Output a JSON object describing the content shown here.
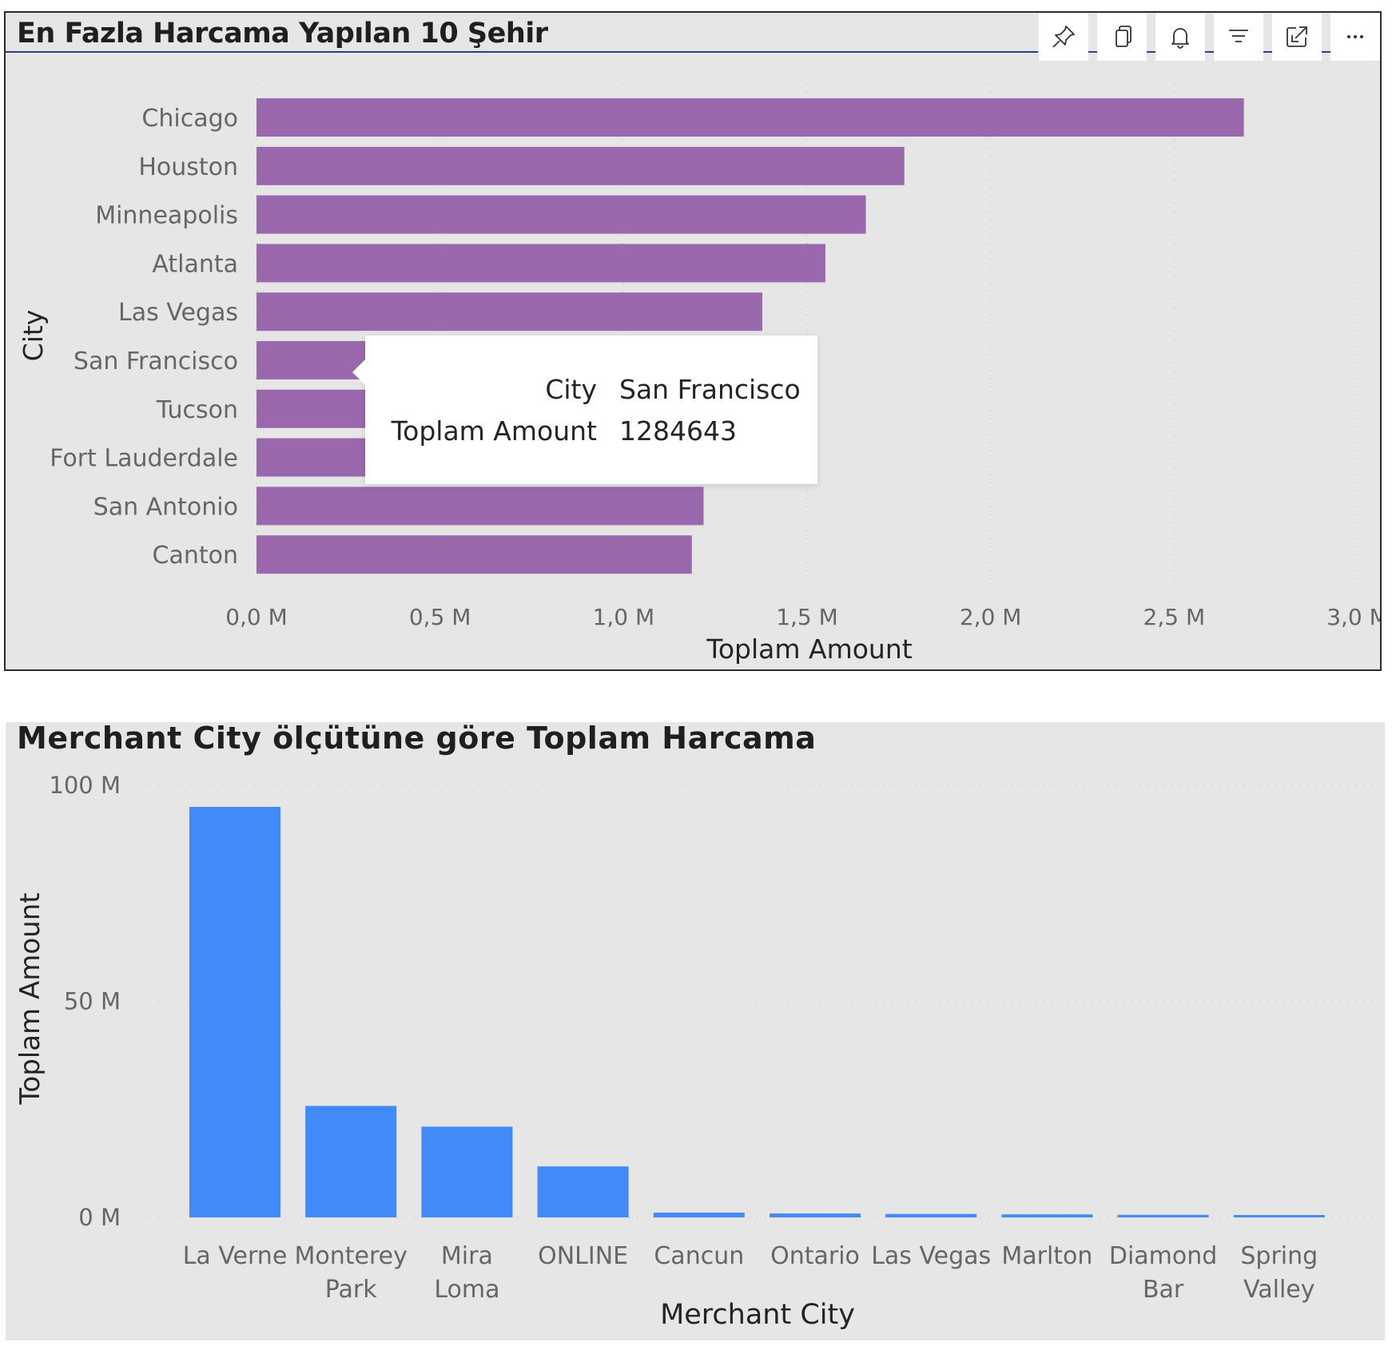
{
  "visual_top": {
    "title": "En Fazla Harcama Yapılan 10 Şehir",
    "toolbar": [
      {
        "name": "pin-icon",
        "label": "pin"
      },
      {
        "name": "copy-icon",
        "label": "copy"
      },
      {
        "name": "bell-icon",
        "label": "alert"
      },
      {
        "name": "filter-icon",
        "label": "filter"
      },
      {
        "name": "focus-mode-icon",
        "label": "focus"
      },
      {
        "name": "more-options-icon",
        "label": "more"
      }
    ],
    "tooltip": {
      "rows": [
        {
          "key": "City",
          "value": "San Francisco"
        },
        {
          "key": "Toplam Amount",
          "value": "1284643"
        }
      ]
    }
  },
  "visual_bottom": {
    "title": "Merchant City ölçütüne göre Toplam Harcama"
  },
  "chart_data": [
    {
      "type": "bar",
      "orientation": "horizontal",
      "title": "En Fazla Harcama Yapılan 10 Şehir",
      "categories": [
        "Chicago",
        "Houston",
        "Minneapolis",
        "Atlanta",
        "Las Vegas",
        "San Francisco",
        "Tucson",
        "Fort Lauderdale",
        "San Antonio",
        "Canton"
      ],
      "values": [
        2690000,
        1765000,
        1660000,
        1550000,
        1378000,
        1284643,
        1260000,
        1245000,
        1218000,
        1186000
      ],
      "xlabel": "Toplam Amount",
      "ylabel": "City",
      "xlim": [
        0,
        3000000
      ],
      "ticks": [
        "0,0 M",
        "0,5 M",
        "1,0 M",
        "1,5 M",
        "2,0 M",
        "2,5 M",
        "3,0 M"
      ],
      "tick_values": [
        0,
        500000,
        1000000,
        1500000,
        2000000,
        2500000,
        3000000
      ],
      "color": "#9b67ad",
      "grid": true
    },
    {
      "type": "bar",
      "orientation": "vertical",
      "title": "Merchant City ölçütüne göre Toplam Harcama",
      "categories": [
        [
          "La Verne"
        ],
        [
          "Monterey",
          "Park"
        ],
        [
          "Mira",
          "Loma"
        ],
        [
          "ONLINE"
        ],
        [
          "Cancun"
        ],
        [
          "Ontario"
        ],
        [
          "Las Vegas"
        ],
        [
          "Marlton"
        ],
        [
          "Diamond",
          "Bar"
        ],
        [
          "Spring",
          "Valley"
        ]
      ],
      "values": [
        95000000,
        25800000,
        21000000,
        11800000,
        1100000,
        900000,
        800000,
        700000,
        600000,
        500000
      ],
      "xlabel": "Merchant City",
      "ylabel": "Toplam Amount",
      "ylim": [
        0,
        100000000
      ],
      "ticks": [
        "0 M",
        "50 M",
        "100 M"
      ],
      "tick_values": [
        0,
        50000000,
        100000000
      ],
      "color": "#418af7",
      "grid": true
    }
  ]
}
